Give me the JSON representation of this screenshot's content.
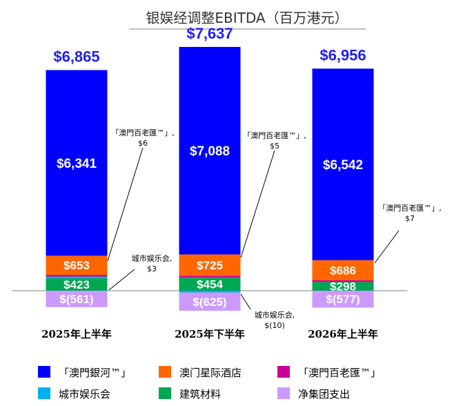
{
  "chart_data": {
    "type": "bar",
    "stacked": true,
    "title": "银娱经调整EBITDA（百万港元）",
    "categories": [
      "2025年上半年",
      "2025年下半年",
      "2026年上半年"
    ],
    "totals": [
      "$6,865",
      "$7,637",
      "$6,956"
    ],
    "series": [
      {
        "name": "「澳門銀河™」",
        "color": "#0000ff",
        "values": [
          6341,
          7088,
          6542
        ],
        "labels": [
          "$6,341",
          "$7,088",
          "$6,542"
        ]
      },
      {
        "name": "澳门星际酒店",
        "color": "#ff6600",
        "values": [
          653,
          725,
          686
        ],
        "labels": [
          "$653",
          "$725",
          "$686"
        ]
      },
      {
        "name": "「澳門百老匯™」",
        "color": "#cc0099",
        "values": [
          6,
          5,
          7
        ],
        "labels": [
          "",
          "",
          ""
        ]
      },
      {
        "name": "城市娱乐会",
        "color": "#00b0f0",
        "values": [
          3,
          -10,
          0
        ],
        "labels": [
          "",
          "",
          ""
        ]
      },
      {
        "name": "建筑材料",
        "color": "#00a651",
        "values": [
          423,
          454,
          298
        ],
        "labels": [
          "$423",
          "$454",
          "$298"
        ]
      },
      {
        "name": "净集团支出",
        "color": "#cc99ff",
        "values": [
          -561,
          -625,
          -577
        ],
        "labels": [
          "$(561)",
          "$(625)",
          "$(577)"
        ]
      }
    ],
    "annotations": [
      {
        "category": "2025年上半年",
        "series": "「澳門百老匯™」",
        "lines": [
          "「澳門百老匯™」,",
          "$6"
        ]
      },
      {
        "category": "2025年上半年",
        "series": "城市娱乐会",
        "lines": [
          "城市娱乐会,",
          "$3"
        ]
      },
      {
        "category": "2025年下半年",
        "series": "「澳門百老匯™」",
        "lines": [
          "「澳門百老匯™」,",
          "$5"
        ]
      },
      {
        "category": "2025年下半年",
        "series": "城市娱乐会",
        "lines": [
          "城市娱乐会,",
          "$(10)"
        ]
      },
      {
        "category": "2026年上半年",
        "series": "「澳門百老匯™」",
        "lines": [
          "「澳門百老匯™」,",
          "$7"
        ]
      }
    ],
    "legend_position": "bottom",
    "grid": false
  }
}
